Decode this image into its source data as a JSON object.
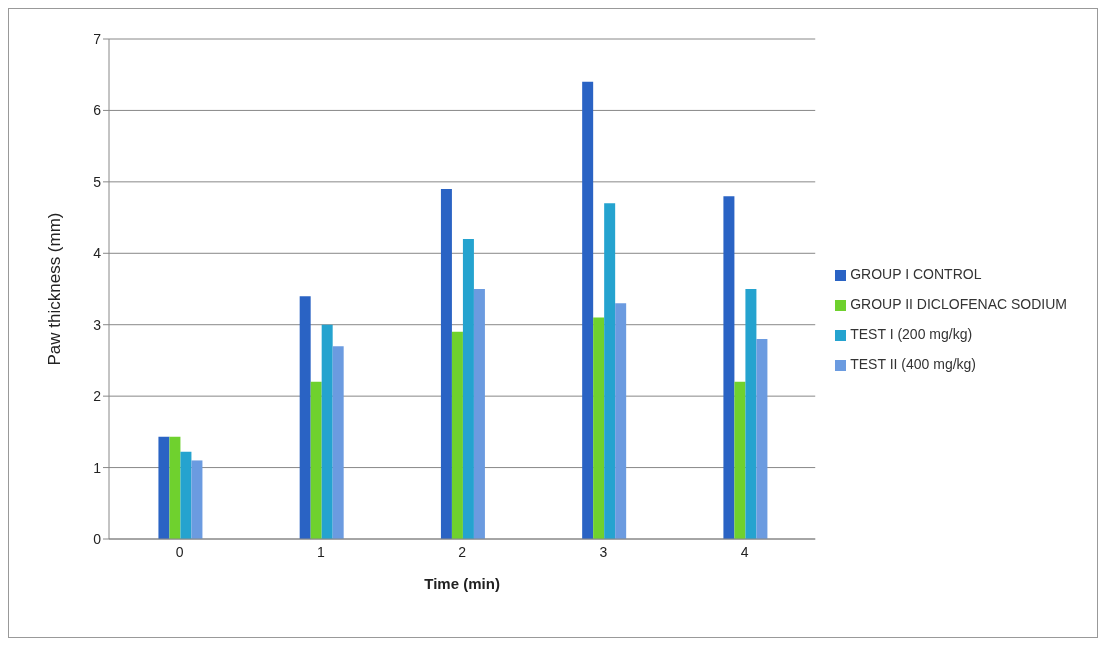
{
  "chart_data": {
    "type": "bar",
    "xlabel": "Time  (min)",
    "ylabel": "Paw thickness  (mm)",
    "categories": [
      "0",
      "1",
      "2",
      "3",
      "4"
    ],
    "series": [
      {
        "name": "GROUP I CONTROL",
        "color": "#2a63c4",
        "values": [
          1.43,
          3.4,
          4.9,
          6.4,
          4.8
        ]
      },
      {
        "name": "GROUP II DICLOFENAC SODIUM",
        "color": "#6fd12e",
        "values": [
          1.43,
          2.2,
          2.9,
          3.1,
          2.2
        ]
      },
      {
        "name": "TEST I (200 mg/kg)",
        "color": "#25a3cf",
        "values": [
          1.22,
          3.0,
          4.2,
          4.7,
          3.5
        ]
      },
      {
        "name": "TEST II (400 mg/kg)",
        "color": "#6b9be0",
        "values": [
          1.1,
          2.7,
          3.5,
          3.3,
          2.8
        ]
      }
    ],
    "ylim": [
      0,
      7
    ],
    "yticks": [
      0,
      1,
      2,
      3,
      4,
      5,
      6,
      7
    ],
    "grid": "y",
    "legend": "right"
  }
}
